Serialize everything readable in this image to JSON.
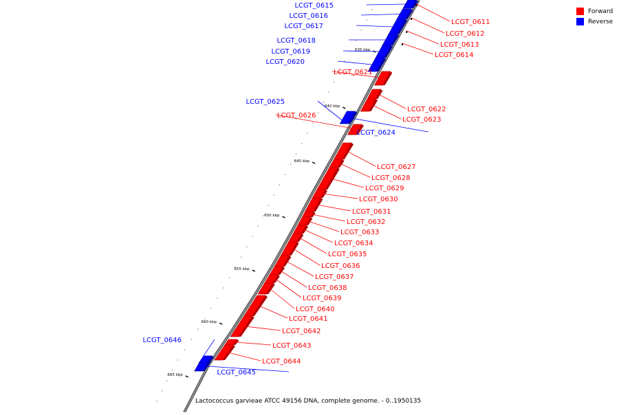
{
  "legend": {
    "forward": {
      "label": "Forward",
      "color": "#ff0000"
    },
    "reverse": {
      "label": "Reverse",
      "color": "#0000ff"
    }
  },
  "caption": "Lactococcus garvieae ATCC 49156 DNA, complete genome. - 0..1950135",
  "ticks": [
    "635 kbp",
    "640 kbp",
    "645 kbp",
    "650 kbp",
    "655 kbp",
    "660 kbp",
    "665 kbp"
  ],
  "genes": [
    {
      "id": "LCGT_0611",
      "strand": "forward"
    },
    {
      "id": "LCGT_0612",
      "strand": "forward"
    },
    {
      "id": "LCGT_0613",
      "strand": "forward"
    },
    {
      "id": "LCGT_0614",
      "strand": "forward"
    },
    {
      "id": "LCGT_0615",
      "strand": "reverse"
    },
    {
      "id": "LCGT_0616",
      "strand": "reverse"
    },
    {
      "id": "LCGT_0617",
      "strand": "reverse"
    },
    {
      "id": "LCGT_0618",
      "strand": "reverse"
    },
    {
      "id": "LCGT_0619",
      "strand": "reverse"
    },
    {
      "id": "LCGT_0620",
      "strand": "reverse"
    },
    {
      "id": "LCGT_0621",
      "strand": "forward"
    },
    {
      "id": "LCGT_0622",
      "strand": "forward"
    },
    {
      "id": "LCGT_0623",
      "strand": "forward"
    },
    {
      "id": "LCGT_0624",
      "strand": "reverse"
    },
    {
      "id": "LCGT_0625",
      "strand": "reverse"
    },
    {
      "id": "LCGT_0626",
      "strand": "forward"
    },
    {
      "id": "LCGT_0627",
      "strand": "forward"
    },
    {
      "id": "LCGT_0628",
      "strand": "forward"
    },
    {
      "id": "LCGT_0629",
      "strand": "forward"
    },
    {
      "id": "LCGT_0630",
      "strand": "forward"
    },
    {
      "id": "LCGT_0631",
      "strand": "forward"
    },
    {
      "id": "LCGT_0632",
      "strand": "forward"
    },
    {
      "id": "LCGT_0633",
      "strand": "forward"
    },
    {
      "id": "LCGT_0634",
      "strand": "forward"
    },
    {
      "id": "LCGT_0635",
      "strand": "forward"
    },
    {
      "id": "LCGT_0636",
      "strand": "forward"
    },
    {
      "id": "LCGT_0637",
      "strand": "forward"
    },
    {
      "id": "LCGT_0638",
      "strand": "forward"
    },
    {
      "id": "LCGT_0639",
      "strand": "forward"
    },
    {
      "id": "LCGT_0640",
      "strand": "forward"
    },
    {
      "id": "LCGT_0641",
      "strand": "forward"
    },
    {
      "id": "LCGT_0642",
      "strand": "forward"
    },
    {
      "id": "LCGT_0643",
      "strand": "forward"
    },
    {
      "id": "LCGT_0644",
      "strand": "forward"
    },
    {
      "id": "LCGT_0645",
      "strand": "reverse"
    },
    {
      "id": "LCGT_0646",
      "strand": "reverse"
    }
  ]
}
